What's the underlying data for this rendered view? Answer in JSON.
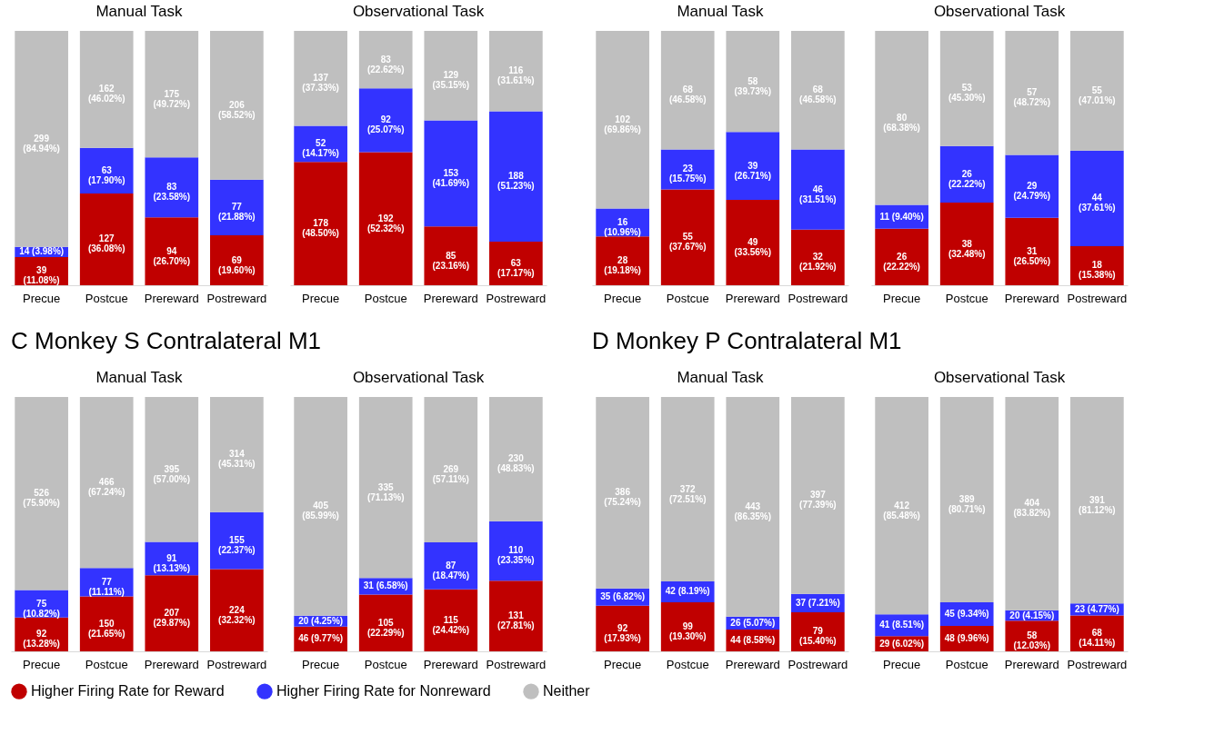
{
  "chart_data": [
    {
      "type": "bar",
      "stacked": true,
      "title": "Manual Task",
      "tick_labels": "x",
      "legend": "bottom",
      "categories": [
        "Precue",
        "Postcue",
        "Prereward",
        "Postreward"
      ],
      "series": [
        {
          "name": "Higher Firing Rate for Reward",
          "color": "#c00000",
          "values": [
            11.08,
            36.08,
            26.7,
            19.6
          ],
          "value_labels": [
            "39\n(11.08%)",
            "127\n(36.08%)",
            "94\n(26.70%)",
            "69\n(19.60%)"
          ]
        },
        {
          "name": "Higher Firing Rate for Nonreward",
          "color": "#3333ff",
          "values": [
            3.98,
            17.9,
            23.58,
            21.88
          ],
          "value_labels": [
            "14 (3.98%)",
            "63\n(17.90%)",
            "83\n(23.58%)",
            "77\n(21.88%)"
          ]
        },
        {
          "name": "Neither",
          "color": "#bfbfbf",
          "values": [
            84.94,
            46.02,
            49.72,
            58.52
          ],
          "value_labels": [
            "299\n(84.94%)",
            "162\n(46.02%)",
            "175\n(49.72%)",
            "206\n(58.52%)"
          ]
        }
      ]
    },
    {
      "type": "bar",
      "stacked": true,
      "title": "Observational Task",
      "tick_labels": "x",
      "legend": "bottom",
      "categories": [
        "Precue",
        "Postcue",
        "Prereward",
        "Postreward"
      ],
      "series": [
        {
          "name": "Higher Firing Rate for Reward",
          "color": "#c00000",
          "values": [
            48.5,
            52.32,
            23.16,
            17.17
          ],
          "value_labels": [
            "178\n(48.50%)",
            "192\n(52.32%)",
            "85\n(23.16%)",
            "63\n(17.17%)"
          ]
        },
        {
          "name": "Higher Firing Rate for Nonreward",
          "color": "#3333ff",
          "values": [
            14.17,
            25.07,
            41.69,
            51.23
          ],
          "value_labels": [
            "52\n(14.17%)",
            "92\n(25.07%)",
            "153\n(41.69%)",
            "188\n(51.23%)"
          ]
        },
        {
          "name": "Neither",
          "color": "#bfbfbf",
          "values": [
            37.33,
            22.62,
            35.15,
            31.61
          ],
          "value_labels": [
            "137\n(37.33%)",
            "83\n(22.62%)",
            "129\n(35.15%)",
            "116\n(31.61%)"
          ]
        }
      ]
    },
    {
      "type": "bar",
      "stacked": true,
      "title": "Manual Task",
      "tick_labels": "x",
      "legend": "bottom",
      "categories": [
        "Precue",
        "Postcue",
        "Prereward",
        "Postreward"
      ],
      "series": [
        {
          "name": "Higher Firing Rate for Reward",
          "color": "#c00000",
          "values": [
            19.18,
            37.67,
            33.56,
            21.92
          ],
          "value_labels": [
            "28\n(19.18%)",
            "55\n(37.67%)",
            "49\n(33.56%)",
            "32\n(21.92%)"
          ]
        },
        {
          "name": "Higher Firing Rate for Nonreward",
          "color": "#3333ff",
          "values": [
            10.96,
            15.75,
            26.71,
            31.51
          ],
          "value_labels": [
            "16\n(10.96%)",
            "23\n(15.75%)",
            "39\n(26.71%)",
            "46\n(31.51%)"
          ]
        },
        {
          "name": "Neither",
          "color": "#bfbfbf",
          "values": [
            69.86,
            46.58,
            39.73,
            46.58
          ],
          "value_labels": [
            "102\n(69.86%)",
            "68\n(46.58%)",
            "58\n(39.73%)",
            "68\n(46.58%)"
          ]
        }
      ]
    },
    {
      "type": "bar",
      "stacked": true,
      "title": "Observational Task",
      "tick_labels": "x",
      "legend": "bottom",
      "categories": [
        "Precue",
        "Postcue",
        "Prereward",
        "Postreward"
      ],
      "series": [
        {
          "name": "Higher Firing Rate for Reward",
          "color": "#c00000",
          "values": [
            22.22,
            32.48,
            26.5,
            15.38
          ],
          "value_labels": [
            "26\n(22.22%)",
            "38\n(32.48%)",
            "31\n(26.50%)",
            "18\n(15.38%)"
          ]
        },
        {
          "name": "Higher Firing Rate for Nonreward",
          "color": "#3333ff",
          "values": [
            9.4,
            22.22,
            24.79,
            37.61
          ],
          "value_labels": [
            "11 (9.40%)",
            "26\n(22.22%)",
            "29\n(24.79%)",
            "44\n(37.61%)"
          ]
        },
        {
          "name": "Neither",
          "color": "#bfbfbf",
          "values": [
            68.38,
            45.3,
            48.72,
            47.01
          ],
          "value_labels": [
            "80\n(68.38%)",
            "53\n(45.30%)",
            "57\n(48.72%)",
            "55\n(47.01%)"
          ]
        }
      ]
    },
    {
      "type": "bar",
      "stacked": true,
      "title": "Manual Task",
      "annotations": [
        "C  Monkey S Contralateral M1"
      ],
      "tick_labels": "x",
      "legend": "bottom",
      "categories": [
        "Precue",
        "Postcue",
        "Prereward",
        "Postreward"
      ],
      "series": [
        {
          "name": "Higher Firing Rate for Reward",
          "color": "#c00000",
          "values": [
            13.28,
            21.65,
            29.87,
            32.32
          ],
          "value_labels": [
            "92\n(13.28%)",
            "150\n(21.65%)",
            "207\n(29.87%)",
            "224\n(32.32%)"
          ]
        },
        {
          "name": "Higher Firing Rate for Nonreward",
          "color": "#3333ff",
          "values": [
            10.82,
            11.11,
            13.13,
            22.37
          ],
          "value_labels": [
            "75\n(10.82%)",
            "77\n(11.11%)",
            "91\n(13.13%)",
            "155\n(22.37%)"
          ]
        },
        {
          "name": "Neither",
          "color": "#bfbfbf",
          "values": [
            75.9,
            67.24,
            57.0,
            45.31
          ],
          "value_labels": [
            "526\n(75.90%)",
            "466\n(67.24%)",
            "395\n(57.00%)",
            "314\n(45.31%)"
          ]
        }
      ]
    },
    {
      "type": "bar",
      "stacked": true,
      "title": "Observational Task",
      "tick_labels": "x",
      "legend": "bottom",
      "categories": [
        "Precue",
        "Postcue",
        "Prereward",
        "Postreward"
      ],
      "series": [
        {
          "name": "Higher Firing Rate for Reward",
          "color": "#c00000",
          "values": [
            9.77,
            22.29,
            24.42,
            27.81
          ],
          "value_labels": [
            "46 (9.77%)",
            "105\n(22.29%)",
            "115\n(24.42%)",
            "131\n(27.81%)"
          ]
        },
        {
          "name": "Higher Firing Rate for Nonreward",
          "color": "#3333ff",
          "values": [
            4.25,
            6.58,
            18.47,
            23.35
          ],
          "value_labels": [
            "20 (4.25%)",
            "31 (6.58%)",
            "87\n(18.47%)",
            "110\n(23.35%)"
          ]
        },
        {
          "name": "Neither",
          "color": "#bfbfbf",
          "values": [
            85.99,
            71.13,
            57.11,
            48.83
          ],
          "value_labels": [
            "405\n(85.99%)",
            "335\n(71.13%)",
            "269\n(57.11%)",
            "230\n(48.83%)"
          ]
        }
      ]
    },
    {
      "type": "bar",
      "stacked": true,
      "title": "Manual Task",
      "annotations": [
        "D  Monkey P Contralateral M1"
      ],
      "tick_labels": "x",
      "legend": "bottom",
      "categories": [
        "Precue",
        "Postcue",
        "Prereward",
        "Postreward"
      ],
      "series": [
        {
          "name": "Higher Firing Rate for Reward",
          "color": "#c00000",
          "values": [
            17.93,
            19.3,
            8.58,
            15.4
          ],
          "value_labels": [
            "92\n(17.93%)",
            "99\n(19.30%)",
            "44 (8.58%)",
            "79\n(15.40%)"
          ]
        },
        {
          "name": "Higher Firing Rate for Nonreward",
          "color": "#3333ff",
          "values": [
            6.82,
            8.19,
            5.07,
            7.21
          ],
          "value_labels": [
            "35 (6.82%)",
            "42 (8.19%)",
            "26 (5.07%)",
            "37 (7.21%)"
          ]
        },
        {
          "name": "Neither",
          "color": "#bfbfbf",
          "values": [
            75.24,
            72.51,
            86.35,
            77.39
          ],
          "value_labels": [
            "386\n(75.24%)",
            "372\n(72.51%)",
            "443\n(86.35%)",
            "397\n(77.39%)"
          ]
        }
      ]
    },
    {
      "type": "bar",
      "stacked": true,
      "title": "Observational Task",
      "tick_labels": "x",
      "legend": "bottom",
      "categories": [
        "Precue",
        "Postcue",
        "Prereward",
        "Postreward"
      ],
      "series": [
        {
          "name": "Higher Firing Rate for Reward",
          "color": "#c00000",
          "values": [
            6.02,
            9.96,
            12.03,
            14.11
          ],
          "value_labels": [
            "29 (6.02%)",
            "48 (9.96%)",
            "58\n(12.03%)",
            "68\n(14.11%)"
          ]
        },
        {
          "name": "Higher Firing Rate for Nonreward",
          "color": "#3333ff",
          "values": [
            8.51,
            9.34,
            4.15,
            4.77
          ],
          "value_labels": [
            "41 (8.51%)",
            "45 (9.34%)",
            "20 (4.15%)",
            "23 (4.77%)"
          ]
        },
        {
          "name": "Neither",
          "color": "#bfbfbf",
          "values": [
            85.48,
            80.71,
            83.82,
            81.12
          ],
          "value_labels": [
            "412\n(85.48%)",
            "389\n(80.71%)",
            "404\n(83.82%)",
            "391\n(81.12%)"
          ]
        }
      ]
    }
  ]
}
